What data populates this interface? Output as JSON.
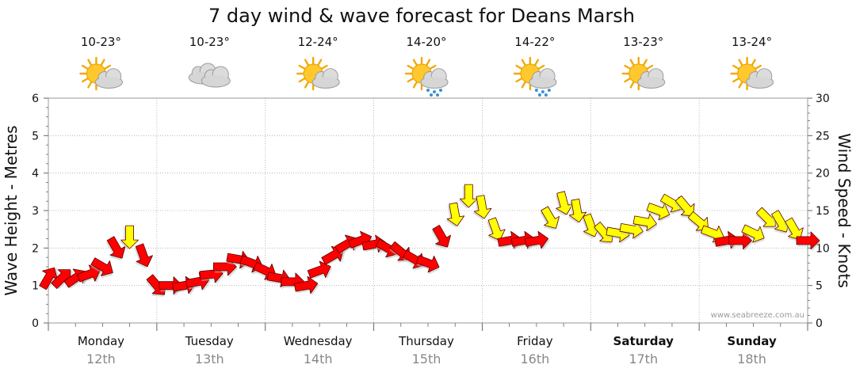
{
  "chart_data": {
    "type": "line",
    "title": "7 day wind & wave forecast for Deans Marsh",
    "ylabel_left": "Wave Height - Metres",
    "ylabel_right": "Wind Speed - Knots",
    "ylim_left": [
      0,
      6
    ],
    "ylim_right": [
      0,
      30
    ],
    "yticks_left": [
      "0",
      "1",
      "2",
      "3",
      "4",
      "5",
      "6"
    ],
    "yticks_right": [
      "0",
      "5",
      "10",
      "15",
      "20",
      "25",
      "30"
    ],
    "grid": true,
    "credit": "www.seabreeze.com.au",
    "days": [
      {
        "name": "Monday",
        "date": "12th",
        "temp": "10-23°",
        "icon": "sun-cloud-icon",
        "bold": false
      },
      {
        "name": "Tuesday",
        "date": "13th",
        "temp": "10-23°",
        "icon": "cloud-icon",
        "bold": false
      },
      {
        "name": "Wednesday",
        "date": "14th",
        "temp": "12-24°",
        "icon": "sun-cloud-icon",
        "bold": false
      },
      {
        "name": "Thursday",
        "date": "15th",
        "temp": "14-20°",
        "icon": "sun-cloud-rain-icon",
        "bold": false
      },
      {
        "name": "Friday",
        "date": "16th",
        "temp": "14-22°",
        "icon": "sun-cloud-rain-icon",
        "bold": false
      },
      {
        "name": "Saturday",
        "date": "17th",
        "temp": "13-23°",
        "icon": "sun-cloud-icon",
        "bold": true
      },
      {
        "name": "Sunday",
        "date": "18th",
        "temp": "13-24°",
        "icon": "sun-cloud-icon",
        "bold": true
      }
    ],
    "wind_series": {
      "name": "Wind Speed (knots)",
      "x_hours": [
        0,
        3,
        6,
        9,
        12,
        15,
        18,
        21,
        24,
        27,
        30,
        33,
        36,
        39,
        42,
        45,
        48,
        51,
        54,
        57,
        60,
        63,
        66,
        69,
        72,
        75,
        78,
        81,
        84,
        87,
        90,
        93,
        96,
        99,
        102,
        105,
        108,
        111,
        114,
        117,
        120,
        123,
        126,
        129,
        132,
        135,
        138,
        141,
        144,
        147,
        150,
        153,
        156,
        159,
        162,
        165,
        168
      ],
      "values": [
        6,
        6,
        6,
        6.5,
        7.5,
        10,
        11.5,
        9,
        5,
        5,
        5,
        5.5,
        6.5,
        7.5,
        8.5,
        8,
        7,
        6,
        5.5,
        5,
        7,
        9,
        10.5,
        11,
        10.5,
        10,
        9.5,
        8.5,
        8,
        11.5,
        14.5,
        17,
        15.5,
        12.5,
        11,
        11,
        11,
        14,
        16,
        15,
        13,
        12,
        12,
        12.5,
        13.5,
        15,
        16,
        15.5,
        13.5,
        12,
        11,
        11,
        12,
        14,
        13.5,
        12.5,
        11
      ],
      "colors": [
        "red",
        "red",
        "red",
        "red",
        "red",
        "red",
        "yellow",
        "red",
        "red",
        "red",
        "red",
        "red",
        "red",
        "red",
        "red",
        "red",
        "red",
        "red",
        "red",
        "red",
        "red",
        "red",
        "red",
        "red",
        "red",
        "red",
        "red",
        "red",
        "red",
        "red",
        "yellow",
        "yellow",
        "yellow",
        "yellow",
        "red",
        "red",
        "red",
        "yellow",
        "yellow",
        "yellow",
        "yellow",
        "yellow",
        "yellow",
        "yellow",
        "yellow",
        "yellow",
        "yellow",
        "yellow",
        "yellow",
        "yellow",
        "red",
        "red",
        "yellow",
        "yellow",
        "yellow",
        "yellow",
        "red"
      ],
      "directions_deg": [
        30,
        45,
        55,
        70,
        120,
        150,
        180,
        160,
        140,
        90,
        80,
        80,
        85,
        90,
        100,
        110,
        115,
        100,
        90,
        80,
        70,
        60,
        60,
        70,
        80,
        120,
        130,
        120,
        110,
        150,
        170,
        180,
        170,
        160,
        80,
        80,
        80,
        150,
        165,
        170,
        160,
        140,
        100,
        100,
        100,
        110,
        120,
        140,
        130,
        110,
        80,
        90,
        115,
        135,
        150,
        150,
        90
      ]
    }
  }
}
